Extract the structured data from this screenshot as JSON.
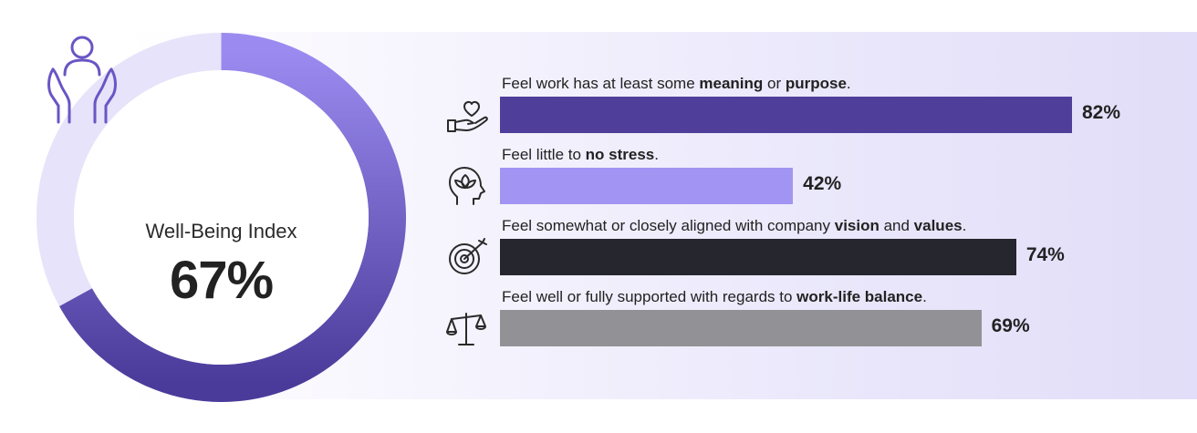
{
  "index": {
    "label": "Well-Being Index",
    "value_text": "67%",
    "value": 0.67,
    "colors": {
      "fill_start": "#9b8bf0",
      "fill_end": "#4a3b9a",
      "track": "#e6e3fa"
    }
  },
  "chart_data": {
    "type": "bar",
    "orientation": "horizontal",
    "xlim": [
      0,
      100
    ],
    "categories": [
      "Feel work has at least some meaning or purpose.",
      "Feel little to no stress.",
      "Feel somewhat or closely aligned with company vision and values.",
      "Feel well or fully supported with regards to work-life balance."
    ],
    "values": [
      82,
      42,
      74,
      69
    ],
    "value_labels": [
      "82%",
      "42%",
      "74%",
      "69%"
    ],
    "colors": [
      "#4f3f9a",
      "#a194f3",
      "#25262e",
      "#929296"
    ],
    "rows": [
      {
        "label_parts": [
          {
            "text": "Feel work has at least some ",
            "bold": false
          },
          {
            "text": "meaning",
            "bold": true
          },
          {
            "text": " or ",
            "bold": false
          },
          {
            "text": "purpose",
            "bold": true
          },
          {
            "text": ".",
            "bold": false
          }
        ],
        "icon": "heart-hand-icon"
      },
      {
        "label_parts": [
          {
            "text": "Feel little to ",
            "bold": false
          },
          {
            "text": "no stress",
            "bold": true
          },
          {
            "text": ".",
            "bold": false
          }
        ],
        "icon": "mind-lotus-icon"
      },
      {
        "label_parts": [
          {
            "text": "Feel somewhat or closely aligned with company ",
            "bold": false
          },
          {
            "text": "vision",
            "bold": true
          },
          {
            "text": " and ",
            "bold": false
          },
          {
            "text": "values",
            "bold": true
          },
          {
            "text": ".",
            "bold": false
          }
        ],
        "icon": "target-icon"
      },
      {
        "label_parts": [
          {
            "text": "Feel well or fully supported with regards to ",
            "bold": false
          },
          {
            "text": "work-life balance",
            "bold": true
          },
          {
            "text": ".",
            "bold": false
          }
        ],
        "icon": "balance-scale-icon"
      }
    ]
  }
}
